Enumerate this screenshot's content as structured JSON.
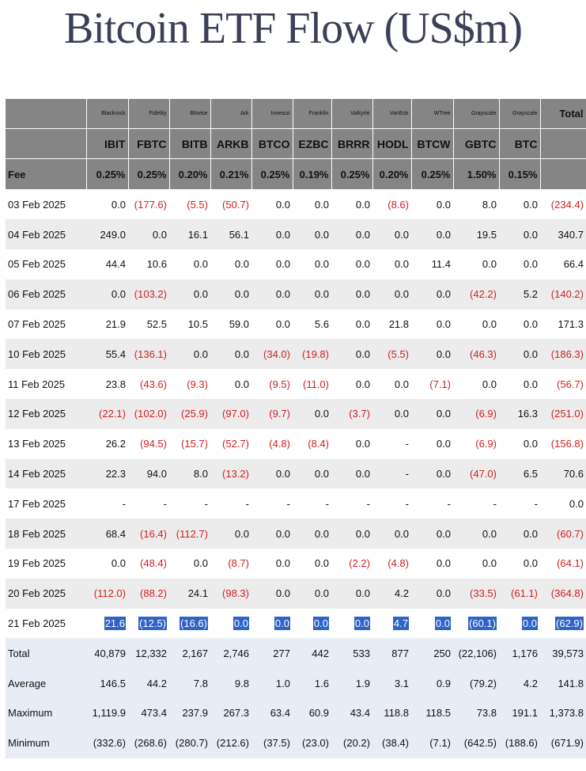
{
  "title": "Bitcoin ETF Flow (US$m)",
  "columns": [
    {
      "issuer": "Blackrock",
      "ticker": "IBIT",
      "fee": "0.25%"
    },
    {
      "issuer": "Fidelity",
      "ticker": "FBTC",
      "fee": "0.25%"
    },
    {
      "issuer": "Bitwise",
      "ticker": "BITB",
      "fee": "0.20%"
    },
    {
      "issuer": "Ark",
      "ticker": "ARKB",
      "fee": "0.21%"
    },
    {
      "issuer": "Invesco",
      "ticker": "BTCO",
      "fee": "0.25%"
    },
    {
      "issuer": "Franklin",
      "ticker": "EZBC",
      "fee": "0.19%"
    },
    {
      "issuer": "Valkyrie",
      "ticker": "BRRR",
      "fee": "0.25%"
    },
    {
      "issuer": "VanEck",
      "ticker": "HODL",
      "fee": "0.20%"
    },
    {
      "issuer": "WTree",
      "ticker": "BTCW",
      "fee": "0.25%"
    },
    {
      "issuer": "Grayscale",
      "ticker": "GBTC",
      "fee": "1.50%"
    },
    {
      "issuer": "Grayscale",
      "ticker": "BTC",
      "fee": "0.15%"
    }
  ],
  "total_header": "Total",
  "fee_label": "Fee",
  "rows": [
    {
      "date": "03 Feb 2025",
      "values": [
        "0.0",
        "(177.6)",
        "(5.5)",
        "(50.7)",
        "0.0",
        "0.0",
        "0.0",
        "(8.6)",
        "0.0",
        "8.0",
        "0.0"
      ],
      "total": "(234.4)"
    },
    {
      "date": "04 Feb 2025",
      "values": [
        "249.0",
        "0.0",
        "16.1",
        "56.1",
        "0.0",
        "0.0",
        "0.0",
        "0.0",
        "0.0",
        "19.5",
        "0.0"
      ],
      "total": "340.7"
    },
    {
      "date": "05 Feb 2025",
      "values": [
        "44.4",
        "10.6",
        "0.0",
        "0.0",
        "0.0",
        "0.0",
        "0.0",
        "0.0",
        "11.4",
        "0.0",
        "0.0"
      ],
      "total": "66.4"
    },
    {
      "date": "06 Feb 2025",
      "values": [
        "0.0",
        "(103.2)",
        "0.0",
        "0.0",
        "0.0",
        "0.0",
        "0.0",
        "0.0",
        "0.0",
        "(42.2)",
        "5.2"
      ],
      "total": "(140.2)"
    },
    {
      "date": "07 Feb 2025",
      "values": [
        "21.9",
        "52.5",
        "10.5",
        "59.0",
        "0.0",
        "5.6",
        "0.0",
        "21.8",
        "0.0",
        "0.0",
        "0.0"
      ],
      "total": "171.3"
    },
    {
      "date": "10 Feb 2025",
      "values": [
        "55.4",
        "(136.1)",
        "0.0",
        "0.0",
        "(34.0)",
        "(19.8)",
        "0.0",
        "(5.5)",
        "0.0",
        "(46.3)",
        "0.0"
      ],
      "total": "(186.3)"
    },
    {
      "date": "11 Feb 2025",
      "values": [
        "23.8",
        "(43.6)",
        "(9.3)",
        "0.0",
        "(9.5)",
        "(11.0)",
        "0.0",
        "0.0",
        "(7.1)",
        "0.0",
        "0.0"
      ],
      "total": "(56.7)"
    },
    {
      "date": "12 Feb 2025",
      "values": [
        "(22.1)",
        "(102.0)",
        "(25.9)",
        "(97.0)",
        "(9.7)",
        "0.0",
        "(3.7)",
        "0.0",
        "0.0",
        "(6.9)",
        "16.3"
      ],
      "total": "(251.0)"
    },
    {
      "date": "13 Feb 2025",
      "values": [
        "26.2",
        "(94.5)",
        "(15.7)",
        "(52.7)",
        "(4.8)",
        "(8.4)",
        "0.0",
        "-",
        "0.0",
        "(6.9)",
        "0.0"
      ],
      "total": "(156.8)"
    },
    {
      "date": "14 Feb 2025",
      "values": [
        "22.3",
        "94.0",
        "8.0",
        "(13.2)",
        "0.0",
        "0.0",
        "0.0",
        "-",
        "0.0",
        "(47.0)",
        "6.5"
      ],
      "total": "70.6"
    },
    {
      "date": "17 Feb 2025",
      "values": [
        "-",
        "-",
        "-",
        "-",
        "-",
        "-",
        "-",
        "-",
        "-",
        "-",
        "-"
      ],
      "total": "0.0"
    },
    {
      "date": "18 Feb 2025",
      "values": [
        "68.4",
        "(16.4)",
        "(112.7)",
        "0.0",
        "0.0",
        "0.0",
        "0.0",
        "0.0",
        "0.0",
        "0.0",
        "0.0"
      ],
      "total": "(60.7)"
    },
    {
      "date": "19 Feb 2025",
      "values": [
        "0.0",
        "(48.4)",
        "0.0",
        "(8.7)",
        "0.0",
        "0.0",
        "(2.2)",
        "(4.8)",
        "0.0",
        "0.0",
        "0.0"
      ],
      "total": "(64.1)"
    },
    {
      "date": "20 Feb 2025",
      "values": [
        "(112.0)",
        "(88.2)",
        "24.1",
        "(98.3)",
        "0.0",
        "0.0",
        "0.0",
        "4.2",
        "0.0",
        "(33.5)",
        "(61.1)"
      ],
      "total": "(364.8)"
    },
    {
      "date": "21 Feb 2025",
      "values": [
        "21.6",
        "(12.5)",
        "(16.6)",
        "0.0",
        "0.0",
        "0.0",
        "0.0",
        "4.7",
        "0.0",
        "(60.1)",
        "0.0"
      ],
      "total": "(62.9)",
      "highlight": true
    }
  ],
  "stats": [
    {
      "label": "Total",
      "values": [
        "40,879",
        "12,332",
        "2,167",
        "2,746",
        "277",
        "442",
        "533",
        "877",
        "250",
        "(22,106)",
        "1,176"
      ],
      "total": "39,573"
    },
    {
      "label": "Average",
      "values": [
        "146.5",
        "44.2",
        "7.8",
        "9.8",
        "1.0",
        "1.6",
        "1.9",
        "3.1",
        "0.9",
        "(79.2)",
        "4.2"
      ],
      "total": "141.8"
    },
    {
      "label": "Maximum",
      "values": [
        "1,119.9",
        "473.4",
        "237.9",
        "267.3",
        "63.4",
        "60.9",
        "43.4",
        "118.8",
        "118.5",
        "73.8",
        "191.1"
      ],
      "total": "1,373.8"
    },
    {
      "label": "Minimum",
      "values": [
        "(332.6)",
        "(268.6)",
        "(280.7)",
        "(212.6)",
        "(37.5)",
        "(23.0)",
        "(20.2)",
        "(38.4)",
        "(7.1)",
        "(642.5)",
        "(188.6)"
      ],
      "total": "(671.9)"
    }
  ],
  "colors": {
    "header_bg": "#858585",
    "negative": "#d22020",
    "highlight": "#2f63c6",
    "title": "#3b3f57",
    "stats_bg": "#e8ecf4"
  }
}
